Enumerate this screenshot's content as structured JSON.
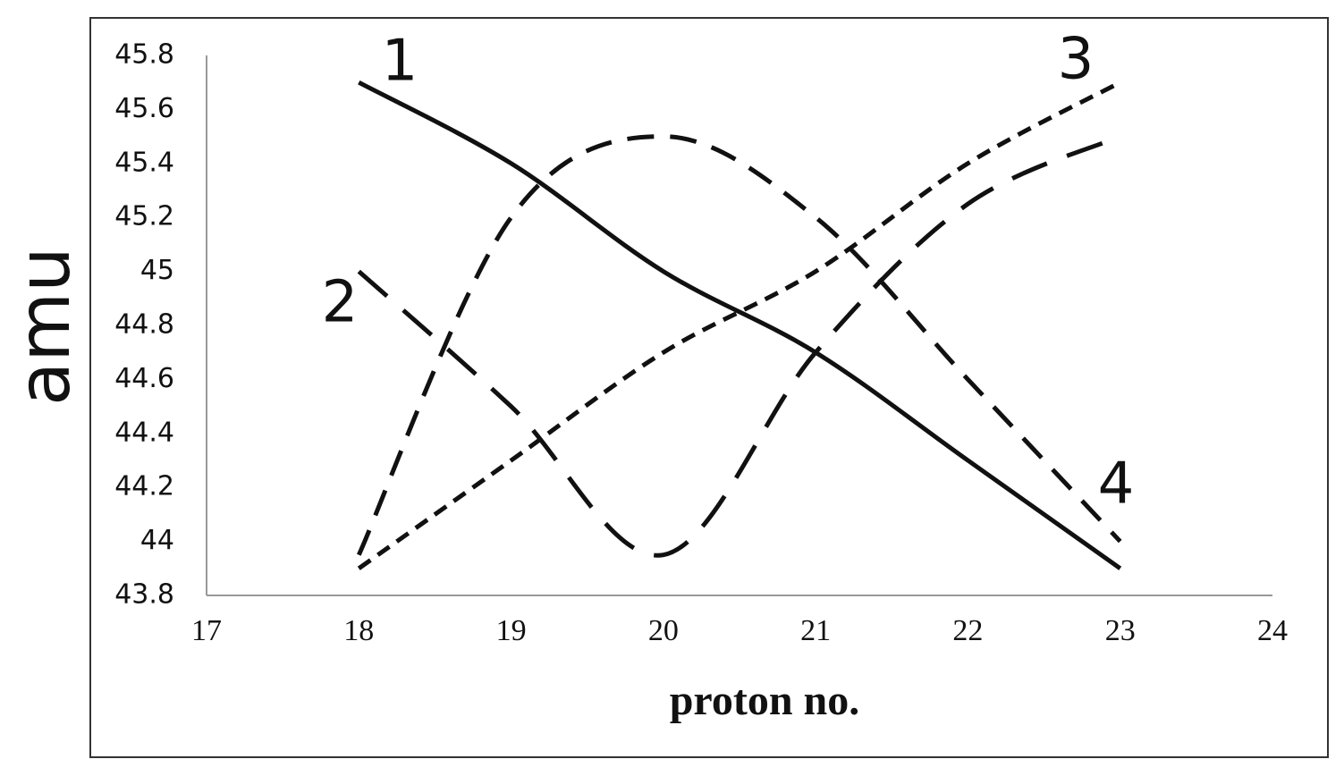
{
  "chart_data": {
    "type": "line",
    "x_label": "proton no.",
    "y_label": "amu",
    "x": [
      18,
      19,
      20,
      21,
      22,
      23
    ],
    "series": [
      {
        "name": "1",
        "color": "#111111",
        "line_style": "solid",
        "values": [
          45.7,
          45.4,
          45.0,
          44.7,
          44.3,
          43.9
        ]
      },
      {
        "name": "2",
        "color": "#111111",
        "line_style": "long-dash",
        "values": [
          45.0,
          44.5,
          43.95,
          44.7,
          45.25,
          45.5
        ]
      },
      {
        "name": "3",
        "color": "#111111",
        "line_style": "short-dash",
        "values": [
          43.9,
          44.3,
          44.7,
          45.0,
          45.4,
          45.7
        ]
      },
      {
        "name": "4",
        "color": "#111111",
        "line_style": "dash",
        "values": [
          43.95,
          45.2,
          45.5,
          45.2,
          44.6,
          44.0
        ]
      }
    ],
    "xlim": [
      17,
      24
    ],
    "xticks": [
      17,
      18,
      19,
      20,
      21,
      22,
      23,
      24
    ],
    "ylim": [
      43.8,
      45.8
    ],
    "yticks": [
      43.8,
      44,
      44.2,
      44.4,
      44.6,
      44.8,
      45,
      45.2,
      45.4,
      45.6,
      45.8
    ],
    "grid": false
  }
}
